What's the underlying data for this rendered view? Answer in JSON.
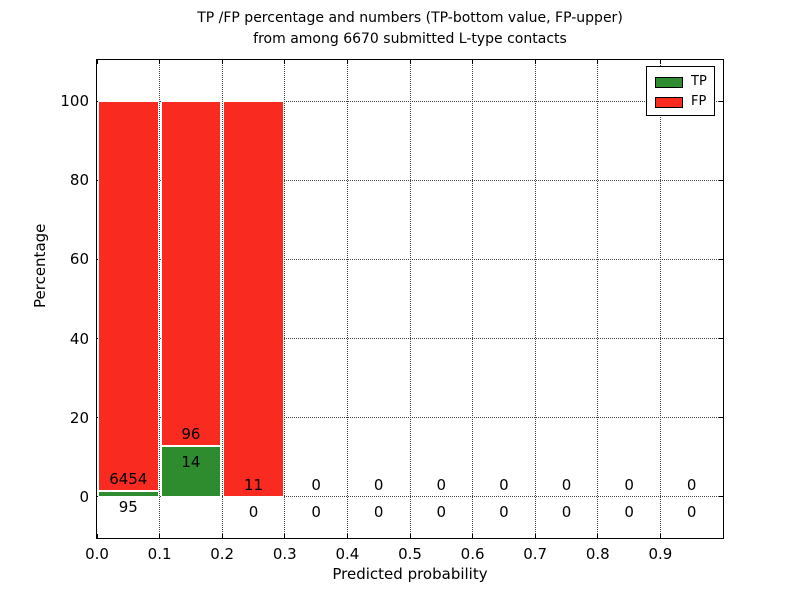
{
  "chart_data": {
    "type": "bar",
    "stacked": true,
    "title_line1": "TP /FP percentage and numbers (TP-bottom value, FP-upper)",
    "title_line2": "from among 6670 submitted L-type contacts",
    "xlabel": "Predicted probability",
    "ylabel": "Percentage",
    "xlim": [
      0.0,
      1.0
    ],
    "ylim": [
      -10.5,
      110.5
    ],
    "xtick_labels": [
      "0.0",
      "0.1",
      "0.2",
      "0.3",
      "0.4",
      "0.5",
      "0.6",
      "0.7",
      "0.8",
      "0.9"
    ],
    "ytick_values": [
      0,
      20,
      40,
      60,
      80,
      100
    ],
    "grid": "dotted",
    "total_submitted": 6670,
    "colors": {
      "tp": "#2e8b2e",
      "fp": "#f92b20"
    },
    "legend": {
      "position": "upper right",
      "entries": [
        {
          "label": "TP",
          "color": "#2e8b2e"
        },
        {
          "label": "FP",
          "color": "#f92b20"
        }
      ]
    },
    "bins": [
      {
        "range": [
          0.0,
          0.1
        ],
        "tp_count": 95,
        "fp_count": 6454,
        "tp_pct": 1.45,
        "fp_pct": 98.55
      },
      {
        "range": [
          0.1,
          0.2
        ],
        "tp_count": 14,
        "fp_count": 96,
        "tp_pct": 12.73,
        "fp_pct": 87.27
      },
      {
        "range": [
          0.2,
          0.3
        ],
        "tp_count": 0,
        "fp_count": 11,
        "tp_pct": 0,
        "fp_pct": 100
      },
      {
        "range": [
          0.3,
          0.4
        ],
        "tp_count": 0,
        "fp_count": 0,
        "tp_pct": 0,
        "fp_pct": 0
      },
      {
        "range": [
          0.4,
          0.5
        ],
        "tp_count": 0,
        "fp_count": 0,
        "tp_pct": 0,
        "fp_pct": 0
      },
      {
        "range": [
          0.5,
          0.6
        ],
        "tp_count": 0,
        "fp_count": 0,
        "tp_pct": 0,
        "fp_pct": 0
      },
      {
        "range": [
          0.6,
          0.7
        ],
        "tp_count": 0,
        "fp_count": 0,
        "tp_pct": 0,
        "fp_pct": 0
      },
      {
        "range": [
          0.7,
          0.8
        ],
        "tp_count": 0,
        "fp_count": 0,
        "tp_pct": 0,
        "fp_pct": 0
      },
      {
        "range": [
          0.8,
          0.9
        ],
        "tp_count": 0,
        "fp_count": 0,
        "tp_pct": 0,
        "fp_pct": 0
      },
      {
        "range": [
          0.9,
          1.0
        ],
        "tp_count": 0,
        "fp_count": 0,
        "tp_pct": 0,
        "fp_pct": 0
      }
    ]
  }
}
